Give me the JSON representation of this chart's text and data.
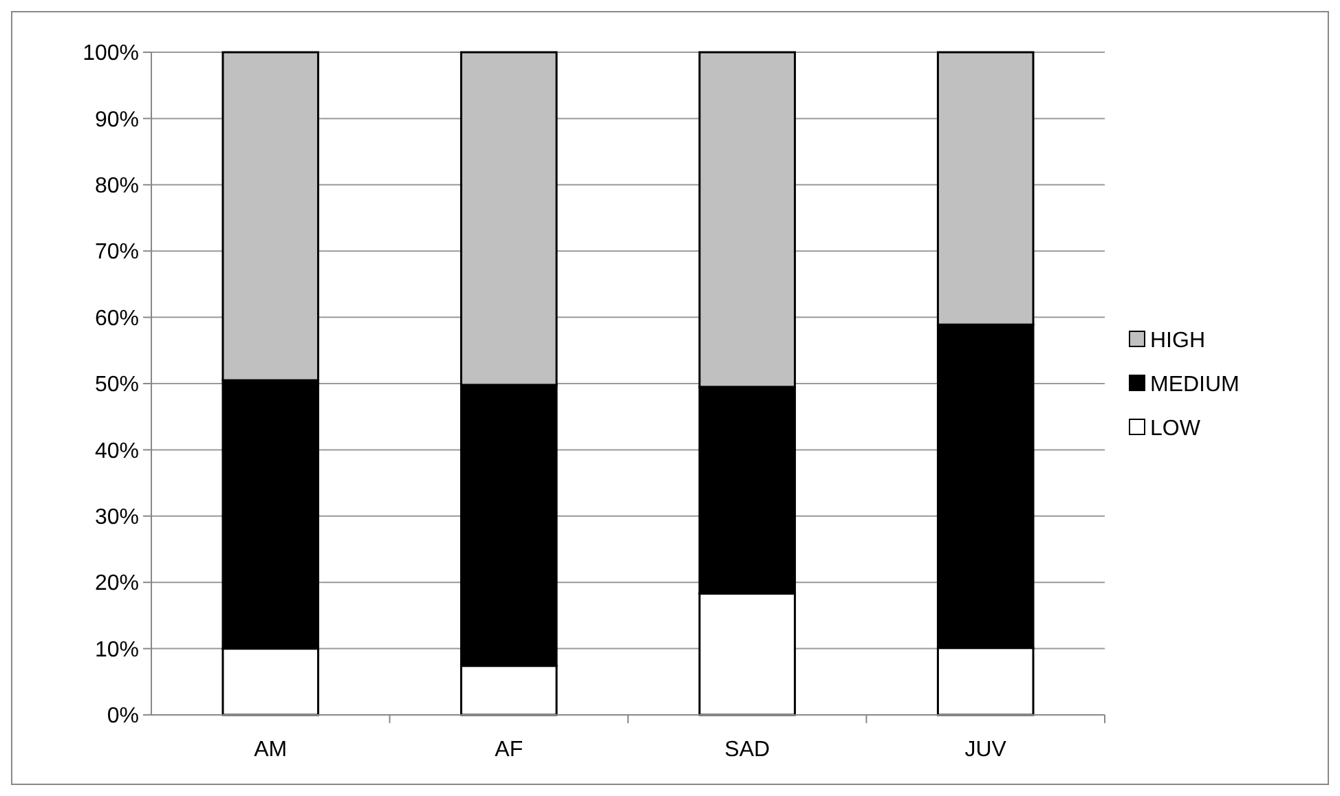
{
  "chart_data": {
    "type": "bar",
    "stacked": true,
    "categories": [
      "AM",
      "AF",
      "SAD",
      "JUV"
    ],
    "series": [
      {
        "name": "LOW",
        "color": "#ffffff",
        "values": [
          10,
          7.4,
          18.3,
          10.1
        ]
      },
      {
        "name": "MEDIUM",
        "color": "#000000",
        "values": [
          40.5,
          42.4,
          31.2,
          48.8
        ]
      },
      {
        "name": "HIGH",
        "color": "#c0c0c0",
        "values": [
          49.5,
          50.2,
          50.5,
          41.1
        ]
      }
    ],
    "ylim": [
      0,
      100
    ],
    "yticks": [
      {
        "value": 0,
        "label": "0%"
      },
      {
        "value": 10,
        "label": "10%"
      },
      {
        "value": 20,
        "label": "20%"
      },
      {
        "value": 30,
        "label": "30%"
      },
      {
        "value": 40,
        "label": "40%"
      },
      {
        "value": 50,
        "label": "50%"
      },
      {
        "value": 60,
        "label": "60%"
      },
      {
        "value": 70,
        "label": "70%"
      },
      {
        "value": 80,
        "label": "80%"
      },
      {
        "value": 90,
        "label": "90%"
      },
      {
        "value": 100,
        "label": "100%"
      }
    ],
    "grid": "y",
    "legend": "right"
  }
}
